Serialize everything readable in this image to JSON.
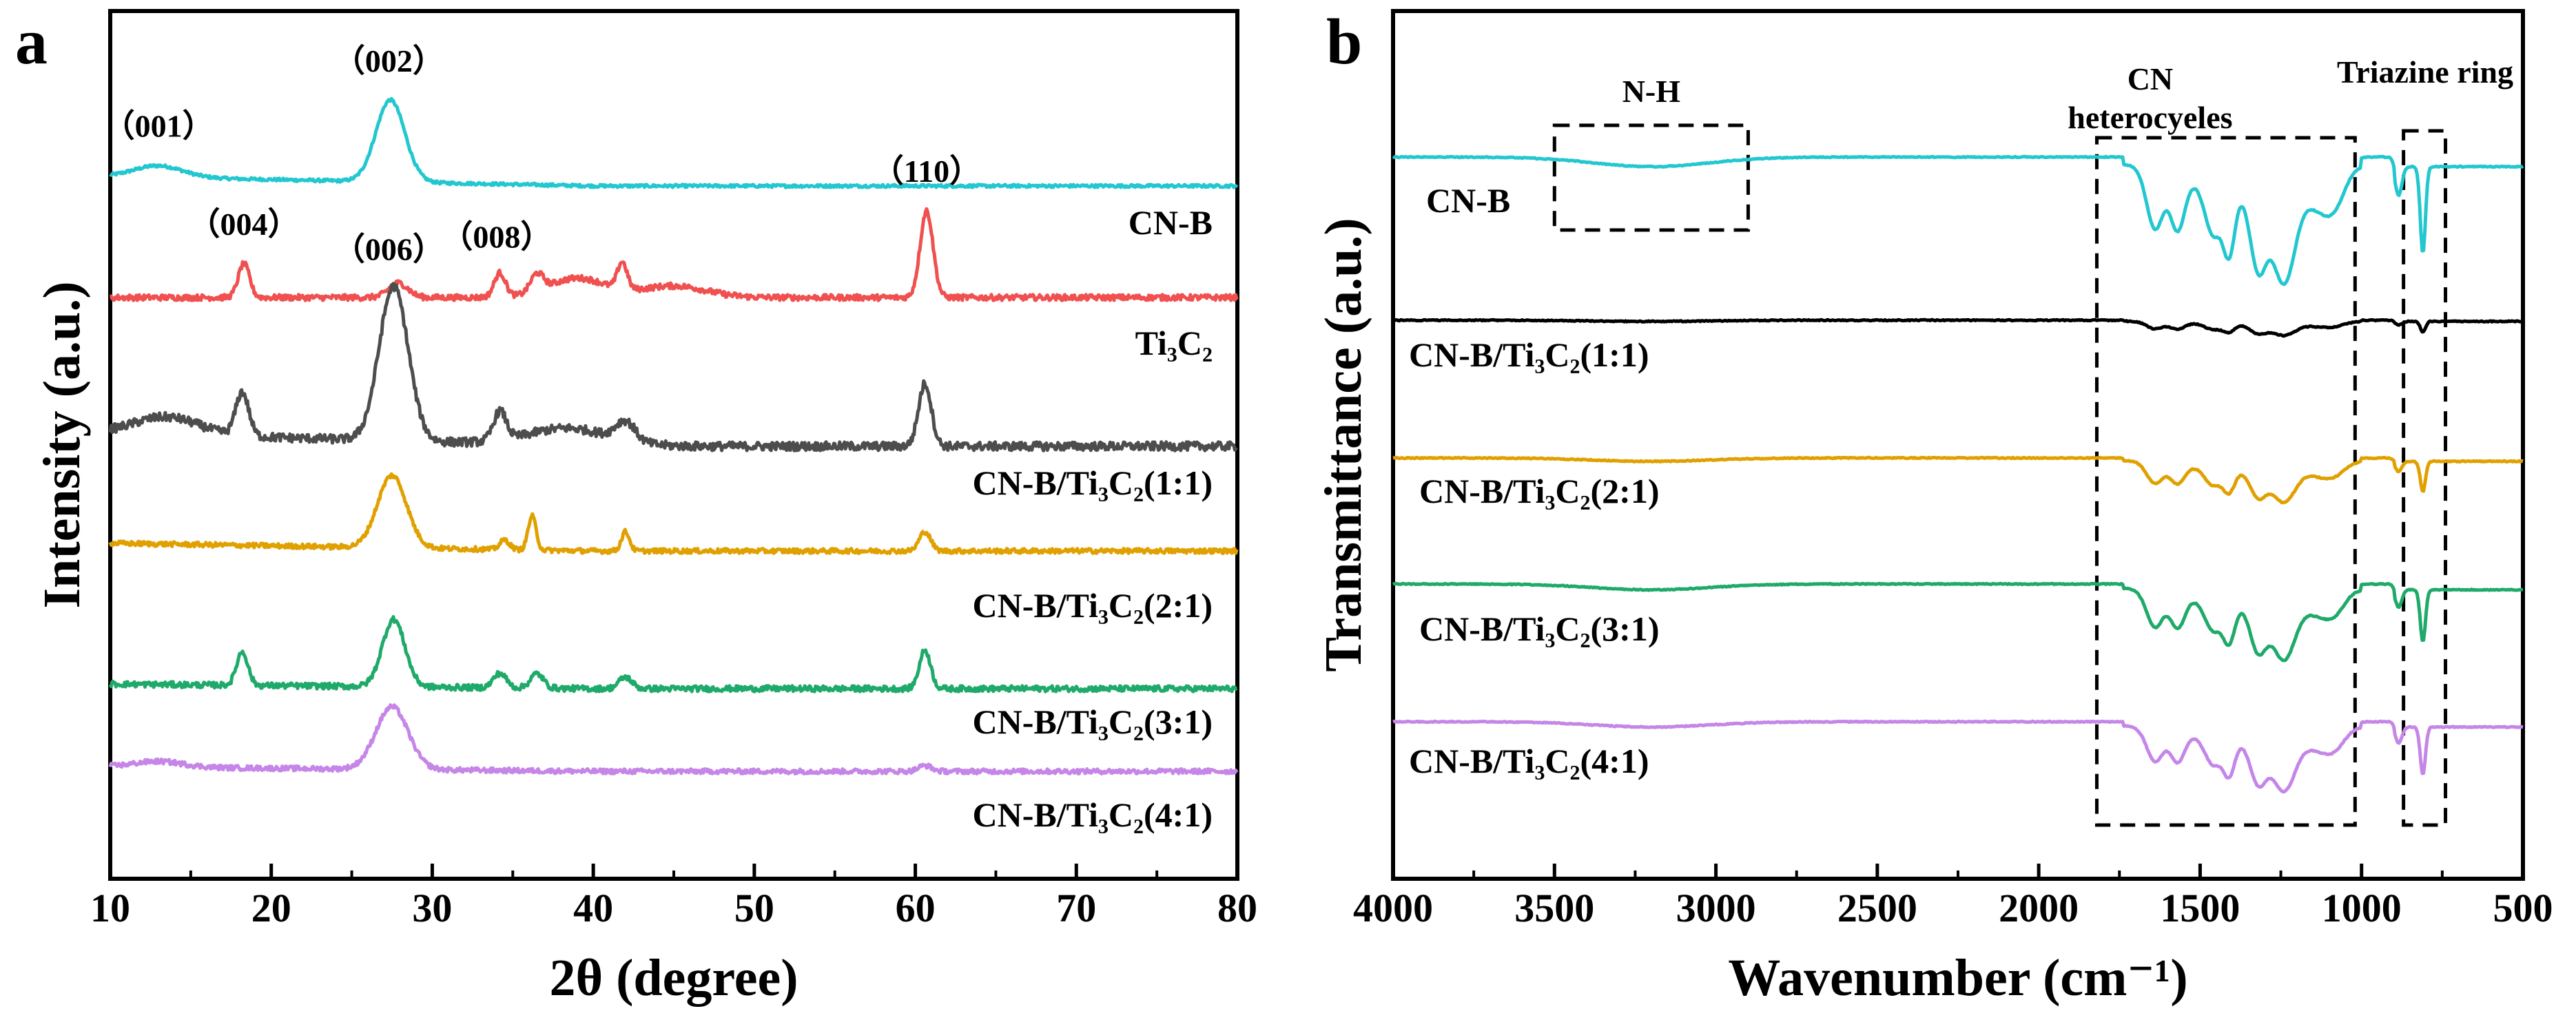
{
  "chart_data": [
    {
      "id": "a",
      "type": "line",
      "panel_label": "a",
      "xlabel": "2θ (degree)",
      "ylabel": "Intensity (a.u.)",
      "xlim": [
        10,
        80
      ],
      "xticks": [
        10,
        20,
        30,
        40,
        50,
        60,
        70,
        80
      ],
      "yticks": false,
      "series": [
        {
          "name": "CN-B",
          "color": "#22c7cf",
          "offset": 5,
          "peaks": [
            {
              "x": 27.4,
              "h": 0.85,
              "w": 0.9
            },
            {
              "x": 13.0,
              "h": 0.12,
              "w": 1.5
            }
          ],
          "tilt": 0.25,
          "noise": 0.03
        },
        {
          "name": "Ti3C2",
          "color": "#f0504f",
          "offset": 4,
          "peaks": [
            {
              "x": 18.3,
              "h": 0.35,
              "w": 0.35
            },
            {
              "x": 27.9,
              "h": 0.15,
              "w": 0.6
            },
            {
              "x": 34.2,
              "h": 0.25,
              "w": 0.35
            },
            {
              "x": 36.5,
              "h": 0.18,
              "w": 0.4
            },
            {
              "x": 39.0,
              "h": 0.2,
              "w": 1.8
            },
            {
              "x": 41.8,
              "h": 0.28,
              "w": 0.3
            },
            {
              "x": 45.0,
              "h": 0.12,
              "w": 2.0
            },
            {
              "x": 60.7,
              "h": 0.9,
              "w": 0.4
            }
          ],
          "tilt": 0.0,
          "noise": 0.06
        },
        {
          "name": "CN-B/Ti3C2(1:1)",
          "color": "#4d4d4d",
          "offset": 3,
          "peaks": [
            {
              "x": 13.5,
              "h": 0.18,
              "w": 2.0
            },
            {
              "x": 18.2,
              "h": 0.45,
              "w": 0.4
            },
            {
              "x": 27.6,
              "h": 1.6,
              "w": 0.9
            },
            {
              "x": 34.2,
              "h": 0.3,
              "w": 0.4
            },
            {
              "x": 38.5,
              "h": 0.18,
              "w": 2.5
            },
            {
              "x": 42.0,
              "h": 0.2,
              "w": 0.6
            },
            {
              "x": 60.6,
              "h": 0.65,
              "w": 0.4
            }
          ],
          "tilt": 0.35,
          "noise": 0.09
        },
        {
          "name": "CN-B/Ti3C2(2:1)",
          "color": "#e0a000",
          "offset": 2,
          "peaks": [
            {
              "x": 27.5,
              "h": 0.75,
              "w": 0.9
            },
            {
              "x": 36.2,
              "h": 0.35,
              "w": 0.25
            },
            {
              "x": 42.0,
              "h": 0.2,
              "w": 0.25
            },
            {
              "x": 34.5,
              "h": 0.1,
              "w": 0.3
            },
            {
              "x": 60.6,
              "h": 0.2,
              "w": 0.35
            }
          ],
          "tilt": 0.2,
          "noise": 0.05
        },
        {
          "name": "CN-B/Ti3C2(3:1)",
          "color": "#1faa6a",
          "offset": 1,
          "peaks": [
            {
              "x": 18.2,
              "h": 0.35,
              "w": 0.35
            },
            {
              "x": 27.6,
              "h": 0.7,
              "w": 0.7
            },
            {
              "x": 34.2,
              "h": 0.15,
              "w": 0.4
            },
            {
              "x": 36.5,
              "h": 0.15,
              "w": 0.4
            },
            {
              "x": 42.0,
              "h": 0.12,
              "w": 0.4
            },
            {
              "x": 60.6,
              "h": 0.4,
              "w": 0.35
            }
          ],
          "tilt": 0.12,
          "noise": 0.06
        },
        {
          "name": "CN-B/Ti3C2(4:1)",
          "color": "#c586e8",
          "offset": 0,
          "peaks": [
            {
              "x": 27.5,
              "h": 0.65,
              "w": 1.0
            },
            {
              "x": 13.0,
              "h": 0.06,
              "w": 1.5
            },
            {
              "x": 60.6,
              "h": 0.06,
              "w": 0.4
            }
          ],
          "tilt": 0.12,
          "noise": 0.05
        }
      ],
      "series_labels": [
        {
          "text": "CN-B",
          "series": 0
        },
        {
          "text": "Ti₃C₂",
          "series": 1
        },
        {
          "text": "CN-B/Ti₃C₂(1:1)",
          "series": 2
        },
        {
          "text": "CN-B/Ti₃C₂(2:1)",
          "series": 3
        },
        {
          "text": "CN-B/Ti₃C₂(3:1)",
          "series": 4
        },
        {
          "text": "CN-B/Ti₃C₂(4:1)",
          "series": 5
        }
      ],
      "annotations": [
        {
          "text": "（001）",
          "x": 13.0,
          "series": 0
        },
        {
          "text": "（002）",
          "x": 27.3,
          "series": 0
        },
        {
          "text": "（004）",
          "x": 18.3,
          "series": 1
        },
        {
          "text": "（006）",
          "x": 27.3,
          "series": 1
        },
        {
          "text": "（008）",
          "x": 34.0,
          "series": 1
        },
        {
          "text": "（110）",
          "x": 60.7,
          "series": 1
        }
      ]
    },
    {
      "id": "b",
      "type": "line",
      "panel_label": "b",
      "xlabel": "Wavenumber (cm⁻¹)",
      "ylabel": "Transmittance (a.u.)",
      "xlim": [
        4000,
        500
      ],
      "xticks": [
        4000,
        3500,
        3000,
        2500,
        2000,
        1500,
        1000,
        500
      ],
      "yticks": false,
      "series": [
        {
          "name": "CN-B",
          "color": "#22c7cf",
          "offset": 4,
          "scale": 1.0
        },
        {
          "name": "CN-B/Ti3C2(1:1)",
          "color": "#000000",
          "offset": 3,
          "scale": 0.12
        },
        {
          "name": "CN-B/Ti3C2(2:1)",
          "color": "#e0a000",
          "offset": 2,
          "scale": 0.35
        },
        {
          "name": "CN-B/Ti3C2(3:1)",
          "color": "#1faa6a",
          "offset": 1,
          "scale": 0.6
        },
        {
          "name": "CN-B/Ti3C2(4:1)",
          "color": "#c586e8",
          "offset": 0,
          "scale": 0.55
        }
      ],
      "series_labels": [
        {
          "text": "CN-B",
          "series": 0
        },
        {
          "text": "CN-B/Ti₃C₂(1:1)",
          "series": 1
        },
        {
          "text": "CN-B/Ti₃C₂(2:1)",
          "series": 2
        },
        {
          "text": "CN-B/Ti₃C₂(3:1)",
          "series": 3
        },
        {
          "text": "CN-B/Ti₃C₂(4:1)",
          "series": 4
        }
      ],
      "regions": [
        {
          "label": "N-H",
          "x0": 3500,
          "x1": 2900
        },
        {
          "label": "CN heterocyeles",
          "label_lines": [
            "CN",
            "heterocyeles"
          ],
          "x0": 1820,
          "x1": 1020
        },
        {
          "label": "Triazine ring",
          "x0": 870,
          "x1": 740
        }
      ]
    }
  ]
}
